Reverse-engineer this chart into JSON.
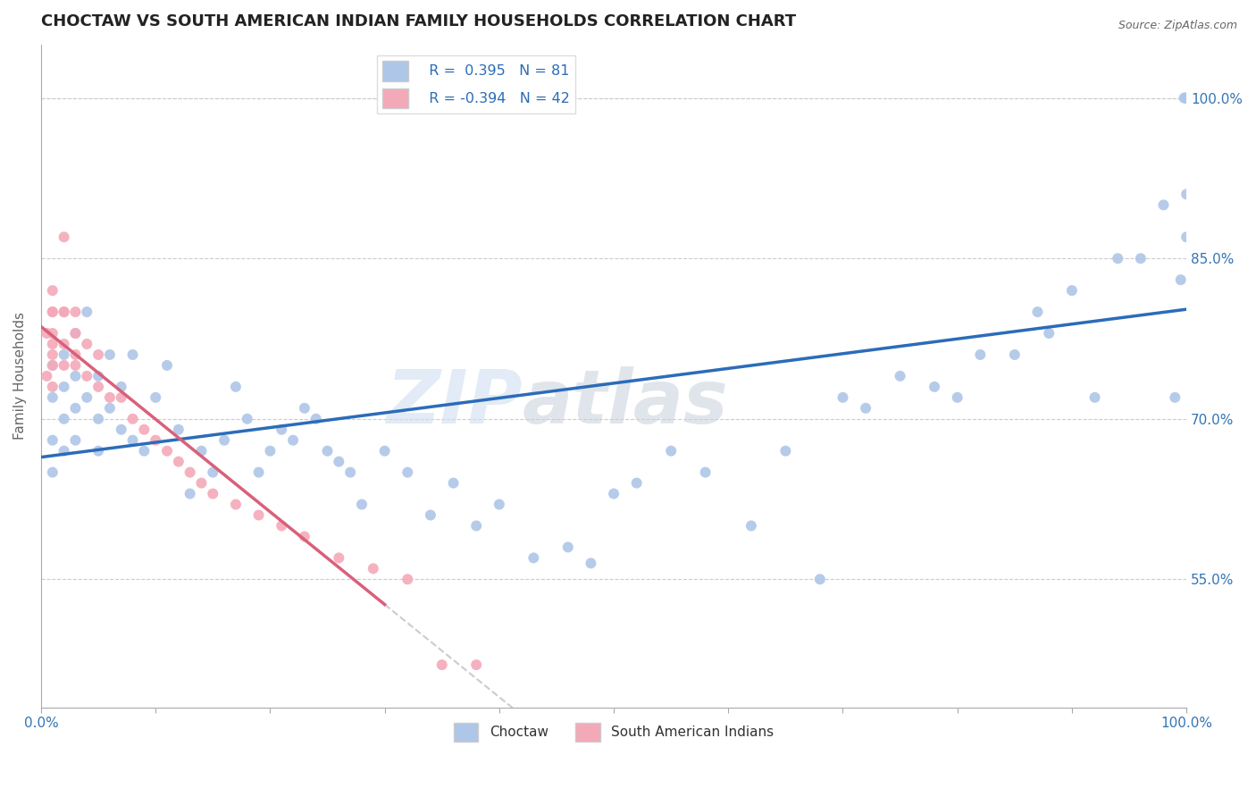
{
  "title": "CHOCTAW VS SOUTH AMERICAN INDIAN FAMILY HOUSEHOLDS CORRELATION CHART",
  "source": "Source: ZipAtlas.com",
  "ylabel": "Family Households",
  "right_yticks": [
    55.0,
    70.0,
    85.0,
    100.0
  ],
  "choctaw_R": 0.395,
  "choctaw_N": 81,
  "sai_R": -0.394,
  "sai_N": 42,
  "choctaw_color": "#aec6e8",
  "sai_color": "#f4a9b8",
  "choctaw_line_color": "#2b6cb8",
  "sai_line_color": "#d9607a",
  "background": "#ffffff",
  "watermark": "ZIPatlas",
  "xlim": [
    0,
    100
  ],
  "ylim": [
    43,
    105
  ],
  "choctaw_x": [
    1,
    1,
    1,
    1,
    2,
    2,
    2,
    2,
    3,
    3,
    3,
    3,
    4,
    4,
    5,
    5,
    5,
    6,
    6,
    7,
    7,
    8,
    8,
    9,
    10,
    11,
    12,
    13,
    14,
    15,
    16,
    17,
    18,
    19,
    20,
    21,
    22,
    23,
    24,
    25,
    26,
    27,
    28,
    30,
    32,
    34,
    36,
    38,
    40,
    43,
    46,
    48,
    50,
    52,
    55,
    58,
    62,
    65,
    68,
    70,
    72,
    75,
    78,
    80,
    82,
    85,
    87,
    88,
    90,
    92,
    94,
    96,
    98,
    99,
    99.5,
    99.8,
    99.9,
    100,
    100,
    100,
    100
  ],
  "choctaw_y": [
    65,
    68,
    72,
    75,
    67,
    70,
    73,
    76,
    68,
    71,
    74,
    78,
    72,
    80,
    67,
    70,
    74,
    71,
    76,
    69,
    73,
    68,
    76,
    67,
    72,
    75,
    69,
    63,
    67,
    65,
    68,
    73,
    70,
    65,
    67,
    69,
    68,
    71,
    70,
    67,
    66,
    65,
    62,
    67,
    65,
    61,
    64,
    60,
    62,
    57,
    58,
    56.5,
    63,
    64,
    67,
    65,
    60,
    67,
    55,
    72,
    71,
    74,
    73,
    72,
    76,
    76,
    80,
    78,
    82,
    72,
    85,
    85,
    90,
    72,
    83,
    100,
    100,
    100,
    91,
    87,
    100
  ],
  "sai_x": [
    0.5,
    0.5,
    1,
    1,
    1,
    1,
    1,
    1,
    1,
    1,
    2,
    2,
    2,
    2,
    2,
    3,
    3,
    3,
    3,
    4,
    4,
    5,
    5,
    6,
    7,
    8,
    9,
    10,
    11,
    12,
    13,
    14,
    15,
    17,
    19,
    21,
    23,
    26,
    29,
    32,
    35,
    38
  ],
  "sai_y": [
    74,
    78,
    80,
    76,
    73,
    80,
    77,
    75,
    78,
    82,
    87,
    80,
    75,
    77,
    80,
    75,
    78,
    76,
    80,
    74,
    77,
    73,
    76,
    72,
    72,
    70,
    69,
    68,
    67,
    66,
    65,
    64,
    63,
    62,
    61,
    60,
    59,
    57,
    56,
    55,
    47,
    47
  ],
  "sai_trend_x0": 0,
  "sai_trend_x1": 30,
  "sai_trend_xdash0": 30,
  "sai_trend_xdash1": 100
}
